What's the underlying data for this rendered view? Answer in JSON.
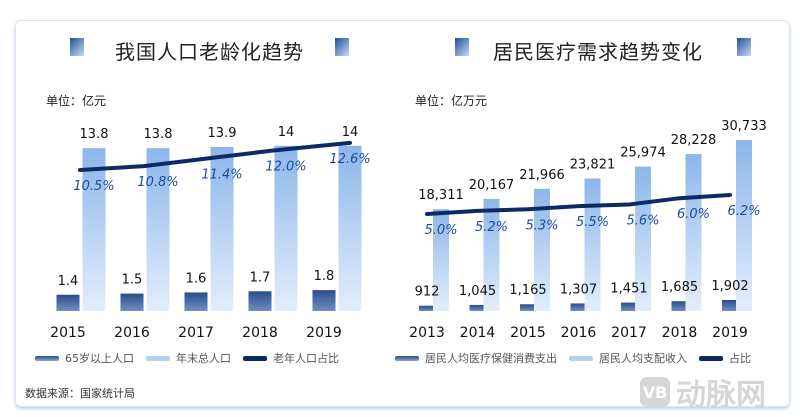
{
  "chart_data": [
    {
      "type": "bar",
      "title": "我国人口老龄化趋势",
      "unit": "单位：亿元",
      "categories": [
        "2015",
        "2016",
        "2017",
        "2018",
        "2019"
      ],
      "series": [
        {
          "name": "65岁以上人口",
          "type": "bar",
          "values": [
            1.4,
            1.5,
            1.6,
            1.7,
            1.8
          ],
          "color": "#1f3f7a"
        },
        {
          "name": "年末总人口",
          "type": "bar",
          "values": [
            13.8,
            13.8,
            13.9,
            14.0,
            14.0
          ],
          "color": "#9cc0ec"
        },
        {
          "name": "老年人口占比",
          "type": "line",
          "values": [
            10.5,
            10.8,
            11.4,
            12.0,
            12.6
          ],
          "labels": [
            "10.5%",
            "10.8%",
            "11.4%",
            "12.0%",
            "12.6%"
          ],
          "color": "#0d2a66"
        }
      ]
    },
    {
      "type": "bar",
      "title": "居民医疗需求趋势变化",
      "unit": "单位：亿万元",
      "categories": [
        "2013",
        "2014",
        "2015",
        "2016",
        "2017",
        "2018",
        "2019"
      ],
      "series": [
        {
          "name": "居民人均医疗保健消费支出",
          "type": "bar",
          "values": [
            912,
            1045,
            1165,
            1307,
            1451,
            1685,
            1902
          ],
          "labels": [
            "912",
            "1,045",
            "1,165",
            "1,307",
            "1,451",
            "1,685",
            "1,902"
          ],
          "color": "#1f3f7a"
        },
        {
          "name": "居民人均支配收入",
          "type": "bar",
          "values": [
            18311,
            20167,
            21966,
            23821,
            25974,
            28228,
            30733
          ],
          "labels": [
            "18,311",
            "20,167",
            "21,966",
            "23,821",
            "25,974",
            "28,228",
            "30,733"
          ],
          "color": "#9cc0ec"
        },
        {
          "name": "占比",
          "type": "line",
          "values": [
            5.0,
            5.2,
            5.3,
            5.5,
            5.6,
            6.0,
            6.2
          ],
          "labels": [
            "5.0%",
            "5.2%",
            "5.3%",
            "5.5%",
            "5.6%",
            "6.0%",
            "6.2%"
          ],
          "color": "#0d2a66"
        }
      ]
    }
  ],
  "source": "数据来源：国家统计局",
  "watermark": "动脉网"
}
